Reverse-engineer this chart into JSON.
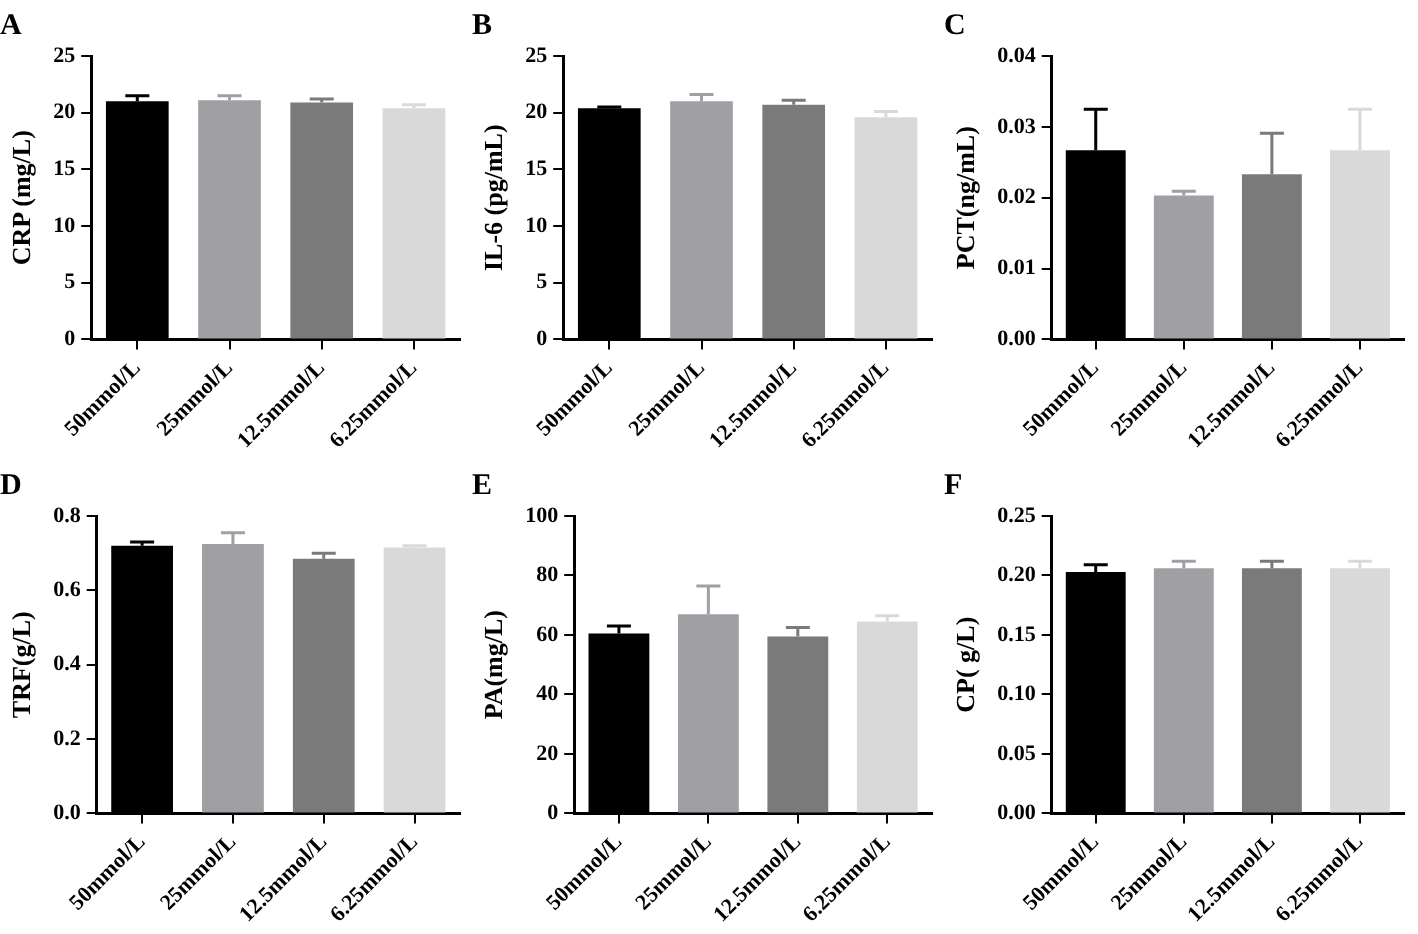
{
  "chart_data": [
    {
      "type": "bar",
      "title": "A",
      "ylabel": "CRP (mg/L)",
      "categories": [
        "50mmol/L",
        "25mmol/L",
        "12.5mmol/L",
        "6.25mmol/L"
      ],
      "values": [
        21.0,
        21.1,
        20.9,
        20.4
      ],
      "errors": [
        [
          21.0,
          21.5
        ],
        [
          21.1,
          21.5
        ],
        [
          20.9,
          21.2
        ],
        [
          20.4,
          20.7
        ]
      ],
      "colors": [
        "#000000",
        "#a0a0a4",
        "#7a7a7a",
        "#d9d9d9"
      ],
      "ylim": [
        0,
        25
      ],
      "yticks": [
        0,
        5,
        10,
        15,
        20,
        25
      ],
      "grid": false,
      "legend": false
    },
    {
      "type": "bar",
      "title": "B",
      "ylabel": "IL-6 (pg/mL)",
      "categories": [
        "50mmol/L",
        "25mmol/L",
        "12.5mmol/L",
        "6.25mmol/L"
      ],
      "values": [
        20.4,
        21.0,
        20.7,
        19.6
      ],
      "errors": [
        [
          20.4,
          20.5
        ],
        [
          21.0,
          21.6
        ],
        [
          20.7,
          21.1
        ],
        [
          19.6,
          20.1
        ]
      ],
      "colors": [
        "#000000",
        "#a0a0a4",
        "#7a7a7a",
        "#d9d9d9"
      ],
      "ylim": [
        0,
        25
      ],
      "yticks": [
        0,
        5,
        10,
        15,
        20,
        25
      ],
      "grid": false,
      "legend": false
    },
    {
      "type": "bar",
      "title": "C",
      "ylabel": "PCT(ng/mL)",
      "categories": [
        "50mmol/L",
        "25mmol/L",
        "12.5mmol/L",
        "6.25mmol/L"
      ],
      "values": [
        0.0267,
        0.0203,
        0.0233,
        0.0267
      ],
      "errors": [
        [
          0.0267,
          0.0325
        ],
        [
          0.0203,
          0.0209
        ],
        [
          0.0233,
          0.0291
        ],
        [
          0.0267,
          0.0325
        ]
      ],
      "colors": [
        "#000000",
        "#a0a0a4",
        "#7a7a7a",
        "#d9d9d9"
      ],
      "ylim": [
        0,
        0.04
      ],
      "yticks": [
        {
          "value": 0,
          "label": "0.00"
        },
        {
          "value": 0.01,
          "label": "0.01"
        },
        {
          "value": 0.02,
          "label": "0.02"
        },
        {
          "value": 0.03,
          "label": "0.03"
        },
        {
          "value": 0.04,
          "label": "0.04"
        }
      ],
      "grid": false,
      "legend": false
    },
    {
      "type": "bar",
      "title": "D",
      "ylabel": "TRF(g/L)",
      "categories": [
        "50mmol/L",
        "25mmol/L",
        "12.5mmol/L",
        "6.25mmol/L"
      ],
      "values": [
        0.72,
        0.725,
        0.685,
        0.715
      ],
      "errors": [
        [
          0.72,
          0.73
        ],
        [
          0.725,
          0.755
        ],
        [
          0.685,
          0.7
        ],
        [
          0.715,
          0.72
        ]
      ],
      "colors": [
        "#000000",
        "#a0a0a4",
        "#7a7a7a",
        "#d9d9d9"
      ],
      "ylim": [
        0,
        0.8
      ],
      "yticks": [
        {
          "value": 0,
          "label": "0.0"
        },
        {
          "value": 0.2,
          "label": "0.2"
        },
        {
          "value": 0.4,
          "label": "0.4"
        },
        {
          "value": 0.6,
          "label": "0.6"
        },
        {
          "value": 0.8,
          "label": "0.8"
        }
      ],
      "grid": false,
      "legend": false
    },
    {
      "type": "bar",
      "title": "E",
      "ylabel": "PA(mg/L)",
      "categories": [
        "50mmol/L",
        "25mmol/L",
        "12.5mmol/L",
        "6.25mmol/L"
      ],
      "values": [
        60.5,
        67,
        59.5,
        64.5
      ],
      "errors": [
        [
          60.5,
          63
        ],
        [
          67,
          76.5
        ],
        [
          59.5,
          62.5
        ],
        [
          64.5,
          66.5
        ]
      ],
      "colors": [
        "#000000",
        "#a0a0a4",
        "#7a7a7a",
        "#d9d9d9"
      ],
      "ylim": [
        0,
        100
      ],
      "yticks": [
        0,
        20,
        40,
        60,
        80,
        100
      ],
      "grid": false,
      "legend": false
    },
    {
      "type": "bar",
      "title": "F",
      "ylabel": "CP( g/L)",
      "categories": [
        "50mmol/L",
        "25mmol/L",
        "12.5mmol/L",
        "6.25mmol/L"
      ],
      "values": [
        0.203,
        0.206,
        0.206,
        0.206
      ],
      "errors": [
        [
          0.203,
          0.209
        ],
        [
          0.206,
          0.212
        ],
        [
          0.206,
          0.212
        ],
        [
          0.206,
          0.212
        ]
      ],
      "colors": [
        "#000000",
        "#a0a0a4",
        "#7a7a7a",
        "#d9d9d9"
      ],
      "ylim": [
        0,
        0.25
      ],
      "yticks": [
        {
          "value": 0,
          "label": "0.00"
        },
        {
          "value": 0.05,
          "label": "0.05"
        },
        {
          "value": 0.1,
          "label": "0.10"
        },
        {
          "value": 0.15,
          "label": "0.15"
        },
        {
          "value": 0.2,
          "label": "0.20"
        },
        {
          "value": 0.25,
          "label": "0.25"
        }
      ],
      "grid": false,
      "legend": false
    }
  ]
}
